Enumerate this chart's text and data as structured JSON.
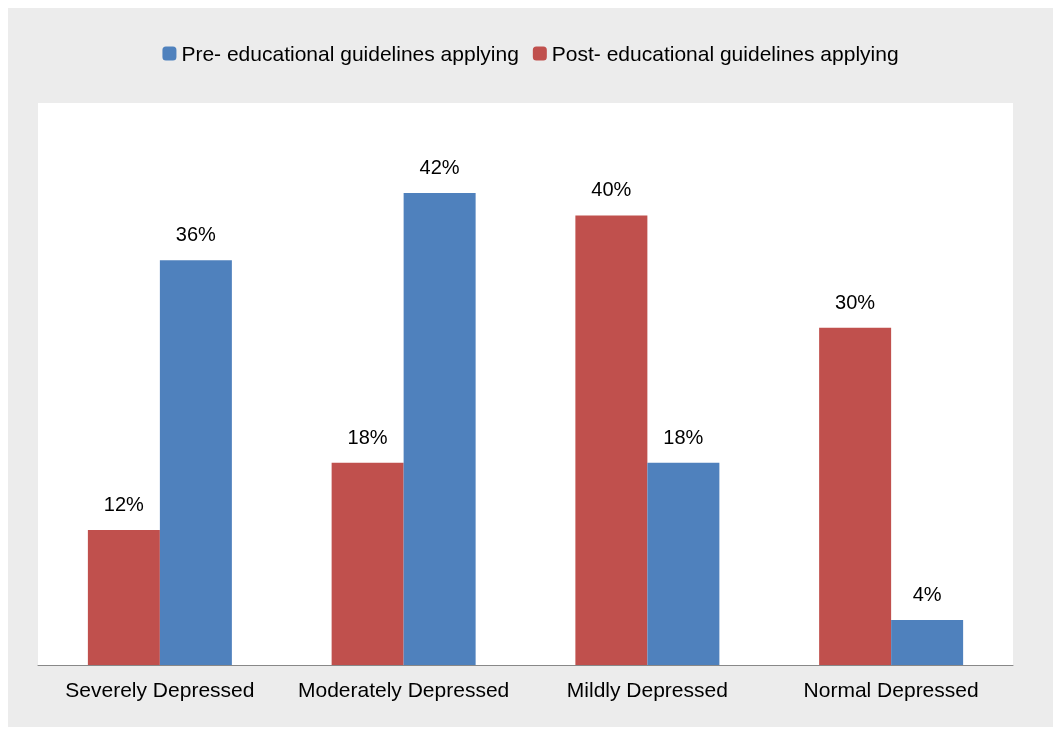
{
  "chart_data": {
    "type": "bar",
    "categories": [
      "Severely Depressed",
      "Moderately Depressed",
      "Mildly Depressed",
      "Normal Depressed"
    ],
    "series": [
      {
        "name": "Post- educational guidelines applying",
        "color": "#c0504d",
        "values": [
          12,
          18,
          40,
          30
        ],
        "value_labels": [
          "12%",
          "18%",
          "40%",
          "30%"
        ]
      },
      {
        "name": "Pre- educational guidelines applying",
        "color": "#4f81bd",
        "values": [
          36,
          42,
          18,
          4
        ],
        "value_labels": [
          "36%",
          "42%",
          "18%",
          "4%"
        ]
      }
    ],
    "legend": "top"
  }
}
